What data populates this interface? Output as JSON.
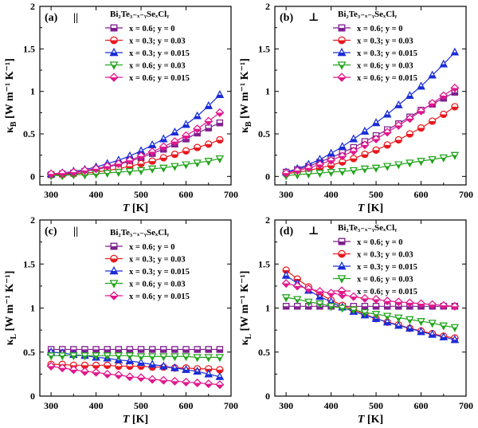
{
  "figure": {
    "panels": [
      {
        "id": "a",
        "label": "(a)",
        "symbol": "||",
        "ylabel_symbol": "κ",
        "ylabel_sub": "B",
        "ylabel_units": "[W m⁻¹ K⁻¹]",
        "legend_title": "Bi₂Te₃₋ₓ₋ᵧSeₓClᵧ"
      },
      {
        "id": "b",
        "label": "(b)",
        "symbol": "⊥",
        "ylabel_symbol": "κ",
        "ylabel_sub": "B",
        "ylabel_units": "[W m⁻¹ K⁻¹]",
        "legend_title": "Bi₂Te₃₋ₓ₋ᵧSeₓClᵧ"
      },
      {
        "id": "c",
        "label": "(c)",
        "symbol": "||",
        "ylabel_symbol": "κ",
        "ylabel_sub": "L",
        "ylabel_units": "[W m⁻¹ K⁻¹]",
        "legend_title": "Bi₂Te₃₋ₓ₋ᵧSeₓClᵧ"
      },
      {
        "id": "d",
        "label": "(d)",
        "symbol": "⊥",
        "ylabel_symbol": "κ",
        "ylabel_sub": "L",
        "ylabel_units": "[W m⁻¹ K⁻¹]",
        "legend_title": "Bi₂Te₃₋ₓ₋ᵧSeₓClᵧ"
      }
    ],
    "xlabel_symbol": "T",
    "xlabel_units": "[K]",
    "legend_entries": [
      {
        "text": "x = 0.6; y = 0",
        "marker": "square",
        "color": "#7f1f8f",
        "fill": "half"
      },
      {
        "text": "x = 0.3; y = 0.03",
        "marker": "circle",
        "color": "#e8191f",
        "fill": "half"
      },
      {
        "text": "x = 0.3; y = 0.015",
        "marker": "triangle-up",
        "color": "#1a2dd8",
        "fill": "half"
      },
      {
        "text": "x = 0.6; y = 0.03",
        "marker": "triangle-down",
        "color": "#22a51c",
        "fill": "half"
      },
      {
        "text": "x = 0.6; y = 0.015",
        "marker": "diamond",
        "color": "#e0188c",
        "fill": "half"
      }
    ]
  },
  "chart_data": [
    {
      "type": "line",
      "panel": "a",
      "xlim": [
        275,
        700
      ],
      "ylim": [
        -0.1,
        2.0
      ],
      "xticks": [
        300,
        400,
        500,
        600,
        700
      ],
      "yticks": [
        0,
        0.5,
        1,
        1.5,
        2
      ],
      "xticklabels": [
        "300",
        "400",
        "500",
        "600",
        "700"
      ],
      "yticklabels": [
        "0",
        "0.5",
        "1",
        "1.5",
        "2"
      ],
      "x": [
        300,
        325,
        350,
        375,
        400,
        425,
        450,
        475,
        500,
        525,
        550,
        575,
        600,
        625,
        650,
        675
      ],
      "series": [
        {
          "name": "x = 0.6; y = 0",
          "values": [
            0.02,
            0.03,
            0.04,
            0.06,
            0.08,
            0.11,
            0.14,
            0.18,
            0.22,
            0.27,
            0.32,
            0.38,
            0.44,
            0.51,
            0.57,
            0.63
          ]
        },
        {
          "name": "x = 0.3; y = 0.03",
          "values": [
            0.02,
            0.02,
            0.03,
            0.04,
            0.05,
            0.07,
            0.09,
            0.12,
            0.15,
            0.18,
            0.22,
            0.26,
            0.3,
            0.34,
            0.38,
            0.43
          ]
        },
        {
          "name": "x = 0.3; y = 0.015",
          "values": [
            0.03,
            0.04,
            0.06,
            0.08,
            0.11,
            0.15,
            0.19,
            0.24,
            0.3,
            0.37,
            0.44,
            0.52,
            0.61,
            0.71,
            0.83,
            0.96
          ]
        },
        {
          "name": "x = 0.6; y = 0.03",
          "values": [
            0.01,
            0.01,
            0.02,
            0.02,
            0.03,
            0.04,
            0.05,
            0.06,
            0.07,
            0.09,
            0.1,
            0.12,
            0.14,
            0.16,
            0.18,
            0.21
          ]
        },
        {
          "name": "x = 0.6; y = 0.015",
          "values": [
            0.03,
            0.04,
            0.05,
            0.07,
            0.09,
            0.12,
            0.15,
            0.19,
            0.24,
            0.29,
            0.35,
            0.41,
            0.48,
            0.56,
            0.65,
            0.75
          ]
        }
      ]
    },
    {
      "type": "line",
      "panel": "b",
      "xlim": [
        275,
        700
      ],
      "ylim": [
        -0.1,
        2.0
      ],
      "xticks": [
        300,
        400,
        500,
        600,
        700
      ],
      "yticks": [
        0,
        0.5,
        1,
        1.5,
        2
      ],
      "xticklabels": [
        "300",
        "400",
        "500",
        "600",
        "700"
      ],
      "yticklabels": [
        "0",
        "0.5",
        "1",
        "1.5",
        "2"
      ],
      "x": [
        300,
        325,
        350,
        375,
        400,
        425,
        450,
        475,
        500,
        525,
        550,
        575,
        600,
        625,
        650,
        675
      ],
      "series": [
        {
          "name": "x = 0.6; y = 0",
          "values": [
            0.05,
            0.08,
            0.12,
            0.17,
            0.22,
            0.28,
            0.34,
            0.41,
            0.48,
            0.55,
            0.62,
            0.7,
            0.78,
            0.85,
            0.92,
            0.99
          ]
        },
        {
          "name": "x = 0.3; y = 0.03",
          "values": [
            0.03,
            0.05,
            0.07,
            0.1,
            0.13,
            0.17,
            0.21,
            0.26,
            0.31,
            0.37,
            0.43,
            0.5,
            0.57,
            0.65,
            0.73,
            0.82
          ]
        },
        {
          "name": "x = 0.3; y = 0.015",
          "values": [
            0.05,
            0.09,
            0.14,
            0.2,
            0.27,
            0.35,
            0.44,
            0.53,
            0.63,
            0.73,
            0.84,
            0.95,
            1.06,
            1.19,
            1.32,
            1.46
          ]
        },
        {
          "name": "x = 0.6; y = 0.03",
          "values": [
            0.01,
            0.02,
            0.03,
            0.04,
            0.05,
            0.06,
            0.07,
            0.09,
            0.1,
            0.12,
            0.14,
            0.16,
            0.18,
            0.2,
            0.22,
            0.25
          ]
        },
        {
          "name": "x = 0.6; y = 0.015",
          "values": [
            0.04,
            0.07,
            0.1,
            0.14,
            0.19,
            0.24,
            0.3,
            0.37,
            0.44,
            0.52,
            0.6,
            0.68,
            0.77,
            0.86,
            0.95,
            1.04
          ]
        }
      ]
    },
    {
      "type": "line",
      "panel": "c",
      "xlim": [
        275,
        700
      ],
      "ylim": [
        0,
        2.0
      ],
      "xticks": [
        300,
        400,
        500,
        600,
        700
      ],
      "yticks": [
        0,
        0.5,
        1,
        1.5,
        2
      ],
      "xticklabels": [
        "300",
        "400",
        "500",
        "600",
        "700"
      ],
      "yticklabels": [
        "0",
        "0.5",
        "1",
        "1.5",
        "2"
      ],
      "x": [
        300,
        325,
        350,
        375,
        400,
        425,
        450,
        475,
        500,
        525,
        550,
        575,
        600,
        625,
        650,
        675
      ],
      "series": [
        {
          "name": "x = 0.6; y = 0",
          "values": [
            0.53,
            0.53,
            0.53,
            0.53,
            0.53,
            0.53,
            0.53,
            0.53,
            0.53,
            0.53,
            0.53,
            0.53,
            0.53,
            0.53,
            0.53,
            0.53
          ]
        },
        {
          "name": "x = 0.3; y = 0.03",
          "values": [
            0.36,
            0.36,
            0.35,
            0.35,
            0.35,
            0.35,
            0.34,
            0.34,
            0.34,
            0.33,
            0.33,
            0.32,
            0.32,
            0.31,
            0.31,
            0.3
          ]
        },
        {
          "name": "x = 0.3; y = 0.015",
          "values": [
            0.5,
            0.49,
            0.47,
            0.46,
            0.44,
            0.43,
            0.41,
            0.4,
            0.38,
            0.36,
            0.34,
            0.32,
            0.3,
            0.28,
            0.25,
            0.22
          ]
        },
        {
          "name": "x = 0.6; y = 0.03",
          "values": [
            0.46,
            0.46,
            0.46,
            0.46,
            0.46,
            0.46,
            0.46,
            0.46,
            0.45,
            0.45,
            0.45,
            0.45,
            0.45,
            0.44,
            0.44,
            0.44
          ]
        },
        {
          "name": "x = 0.6; y = 0.015",
          "values": [
            0.34,
            0.32,
            0.3,
            0.28,
            0.27,
            0.25,
            0.24,
            0.22,
            0.21,
            0.19,
            0.18,
            0.17,
            0.16,
            0.15,
            0.14,
            0.13
          ]
        }
      ]
    },
    {
      "type": "line",
      "panel": "d",
      "xlim": [
        275,
        700
      ],
      "ylim": [
        0,
        2.0
      ],
      "xticks": [
        300,
        400,
        500,
        600,
        700
      ],
      "yticks": [
        0,
        0.5,
        1,
        1.5,
        2
      ],
      "xticklabels": [
        "300",
        "400",
        "500",
        "600",
        "700"
      ],
      "yticklabels": [
        "0",
        "0.5",
        "1",
        "1.5",
        "2"
      ],
      "x": [
        300,
        325,
        350,
        375,
        400,
        425,
        450,
        475,
        500,
        525,
        550,
        575,
        600,
        625,
        650,
        675
      ],
      "series": [
        {
          "name": "x = 0.6; y = 0",
          "values": [
            1.02,
            1.02,
            1.02,
            1.02,
            1.02,
            1.02,
            1.02,
            1.02,
            1.02,
            1.02,
            1.02,
            1.02,
            1.02,
            1.02,
            1.02,
            1.02
          ]
        },
        {
          "name": "x = 0.3; y = 0.03",
          "values": [
            1.43,
            1.33,
            1.24,
            1.16,
            1.09,
            1.03,
            0.98,
            0.93,
            0.88,
            0.84,
            0.81,
            0.77,
            0.74,
            0.71,
            0.68,
            0.66
          ]
        },
        {
          "name": "x = 0.3; y = 0.015",
          "values": [
            1.37,
            1.28,
            1.2,
            1.13,
            1.07,
            1.01,
            0.96,
            0.92,
            0.88,
            0.84,
            0.8,
            0.77,
            0.73,
            0.7,
            0.67,
            0.64
          ]
        },
        {
          "name": "x = 0.6; y = 0.03",
          "values": [
            1.12,
            1.1,
            1.07,
            1.05,
            1.02,
            1.0,
            0.98,
            0.95,
            0.93,
            0.91,
            0.89,
            0.87,
            0.85,
            0.83,
            0.8,
            0.78
          ]
        },
        {
          "name": "x = 0.6; y = 0.015",
          "values": [
            1.28,
            1.25,
            1.22,
            1.19,
            1.17,
            1.15,
            1.13,
            1.11,
            1.1,
            1.08,
            1.07,
            1.06,
            1.05,
            1.04,
            1.03,
            1.02
          ]
        }
      ]
    }
  ]
}
